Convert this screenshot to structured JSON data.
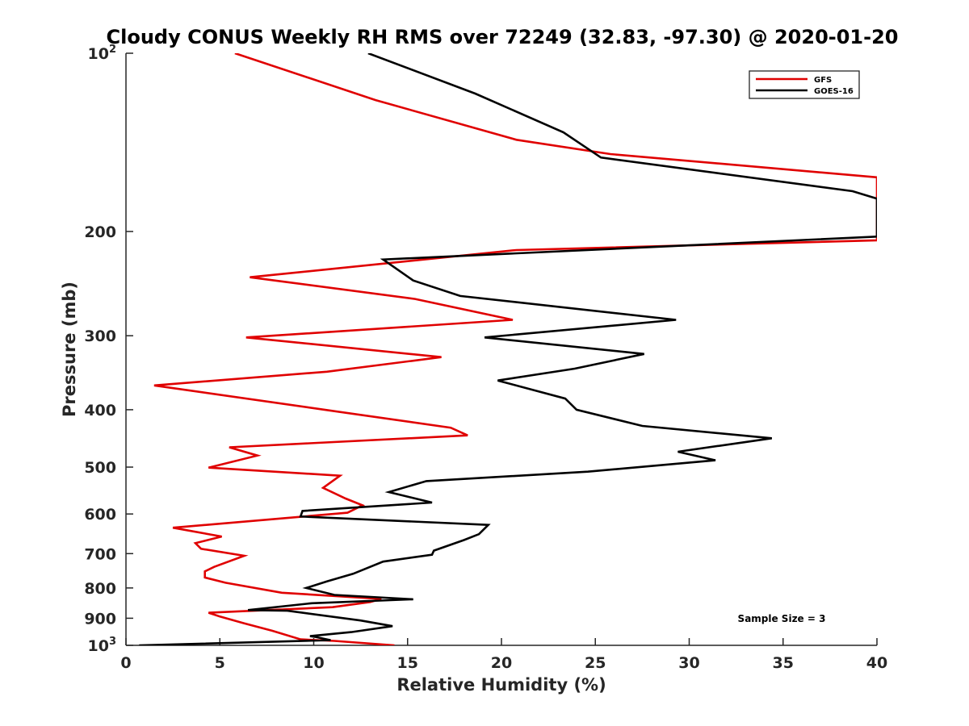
{
  "chart_data": {
    "type": "line",
    "title": "Cloudy CONUS Weekly RH RMS over 72249 (32.83, -97.30) @ 2020-01-20",
    "xlabel": "Relative Humidity (%)",
    "ylabel": "Pressure (mb)",
    "xlim": [
      0,
      40
    ],
    "ylim": [
      100,
      1000
    ],
    "y_scale": "log",
    "y_reversed": true,
    "x_ticks": [
      0,
      5,
      10,
      15,
      20,
      25,
      30,
      35,
      40
    ],
    "x_tick_labels": [
      "0",
      "5",
      "10",
      "15",
      "20",
      "25",
      "30",
      "35",
      "40"
    ],
    "y_ticks": [
      {
        "value": 100,
        "base": "10",
        "exp": "2"
      },
      {
        "value": 200,
        "base": "200",
        "exp": ""
      },
      {
        "value": 300,
        "base": "300",
        "exp": ""
      },
      {
        "value": 400,
        "base": "400",
        "exp": ""
      },
      {
        "value": 500,
        "base": "500",
        "exp": ""
      },
      {
        "value": 600,
        "base": "600",
        "exp": ""
      },
      {
        "value": 700,
        "base": "700",
        "exp": ""
      },
      {
        "value": 800,
        "base": "800",
        "exp": ""
      },
      {
        "value": 900,
        "base": "900",
        "exp": ""
      },
      {
        "value": 1000,
        "base": "10",
        "exp": "3"
      }
    ],
    "grid": false,
    "legend_position": "top-right",
    "annotation": "Sample Size = 3",
    "series": [
      {
        "name": "GFS",
        "color": "#e00000",
        "points": [
          [
            5.8,
            100
          ],
          [
            13.3,
            120
          ],
          [
            20.8,
            140
          ],
          [
            25.8,
            148
          ],
          [
            40.0,
            162
          ],
          [
            40.0,
            207
          ],
          [
            20.8,
            215
          ],
          [
            6.6,
            239
          ],
          [
            15.4,
            260
          ],
          [
            20.6,
            282
          ],
          [
            6.4,
            302
          ],
          [
            16.8,
            326
          ],
          [
            10.7,
            345
          ],
          [
            1.5,
            364
          ],
          [
            10.8,
            401
          ],
          [
            17.3,
            429
          ],
          [
            18.2,
            442
          ],
          [
            5.5,
            463
          ],
          [
            7.0,
            478
          ],
          [
            4.4,
            501
          ],
          [
            11.4,
            517
          ],
          [
            10.5,
            542
          ],
          [
            11.7,
            565
          ],
          [
            12.6,
            580
          ],
          [
            11.8,
            597
          ],
          [
            2.5,
            633
          ],
          [
            5.1,
            655
          ],
          [
            3.7,
            672
          ],
          [
            4.0,
            687
          ],
          [
            6.3,
            706
          ],
          [
            4.7,
            737
          ],
          [
            4.2,
            750
          ],
          [
            4.2,
            768
          ],
          [
            5.3,
            784
          ],
          [
            8.3,
            815
          ],
          [
            13.6,
            835
          ],
          [
            13.0,
            845
          ],
          [
            11.0,
            862
          ],
          [
            4.4,
            881
          ],
          [
            5.0,
            894
          ],
          [
            6.3,
            918
          ],
          [
            7.8,
            945
          ],
          [
            9.3,
            977
          ],
          [
            11.1,
            983
          ],
          [
            14.3,
            1000
          ]
        ]
      },
      {
        "name": "GOES-16",
        "color": "#000000",
        "points": [
          [
            12.9,
            100
          ],
          [
            18.6,
            117
          ],
          [
            23.3,
            136
          ],
          [
            25.3,
            150
          ],
          [
            38.7,
            171
          ],
          [
            40.0,
            176
          ],
          [
            40.0,
            204
          ],
          [
            13.7,
            223
          ],
          [
            15.3,
            242
          ],
          [
            17.8,
            257
          ],
          [
            29.3,
            282
          ],
          [
            19.1,
            302
          ],
          [
            27.6,
            322
          ],
          [
            23.9,
            341
          ],
          [
            19.8,
            357
          ],
          [
            23.4,
            383
          ],
          [
            24.0,
            400
          ],
          [
            27.5,
            426
          ],
          [
            34.4,
            447
          ],
          [
            29.4,
            471
          ],
          [
            31.4,
            487
          ],
          [
            24.6,
            509
          ],
          [
            16.0,
            528
          ],
          [
            14.0,
            551
          ],
          [
            16.3,
            574
          ],
          [
            9.4,
            593
          ],
          [
            9.3,
            606
          ],
          [
            19.3,
            626
          ],
          [
            18.8,
            649
          ],
          [
            18.0,
            664
          ],
          [
            16.4,
            692
          ],
          [
            16.3,
            703
          ],
          [
            13.7,
            722
          ],
          [
            12.1,
            757
          ],
          [
            10.7,
            780
          ],
          [
            9.6,
            800
          ],
          [
            11.1,
            822
          ],
          [
            15.3,
            836
          ],
          [
            9.9,
            849
          ],
          [
            6.5,
            872
          ],
          [
            8.6,
            874
          ],
          [
            12.5,
            908
          ],
          [
            14.2,
            928
          ],
          [
            12.0,
            950
          ],
          [
            9.8,
            965
          ],
          [
            10.1,
            968
          ],
          [
            10.9,
            980
          ],
          [
            0.7,
            1000
          ]
        ]
      }
    ]
  }
}
